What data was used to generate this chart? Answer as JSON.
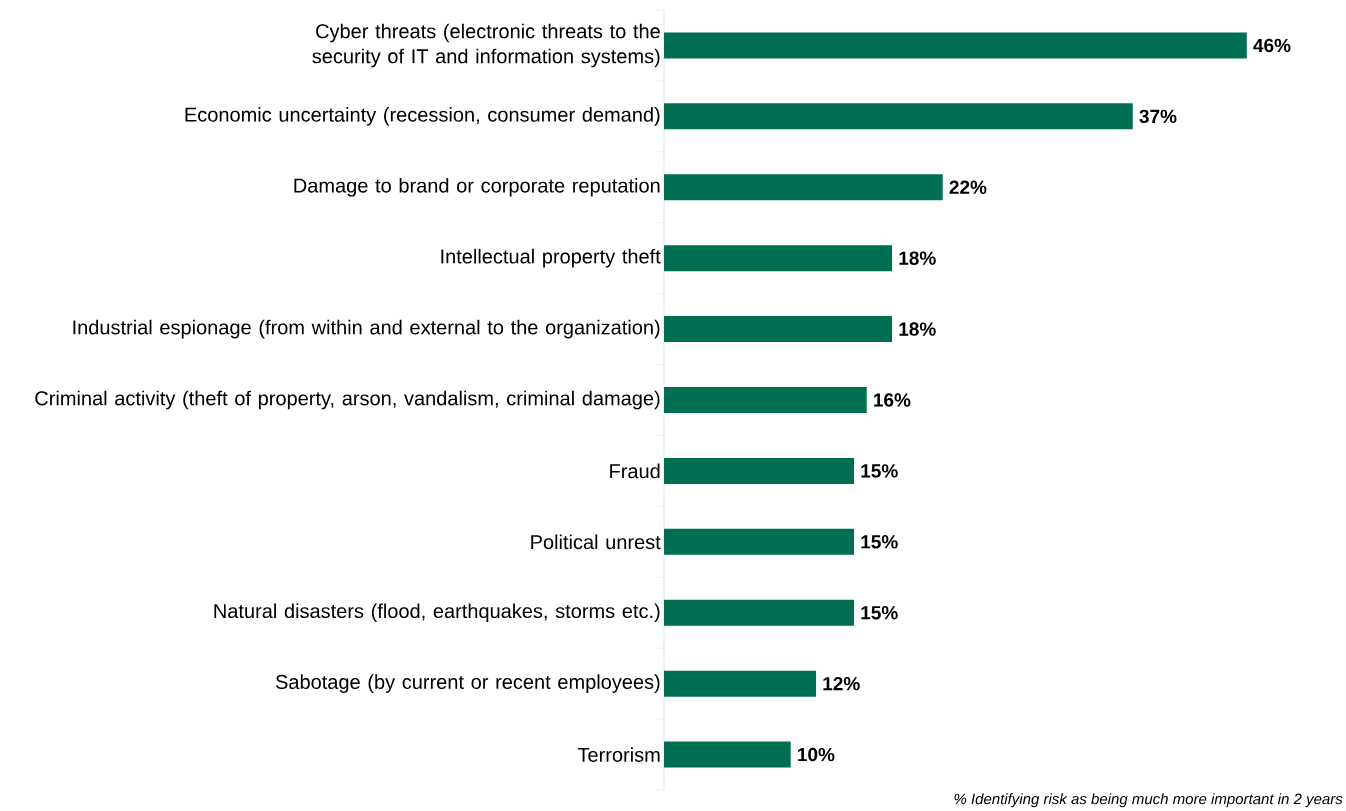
{
  "chart_data": {
    "type": "bar",
    "orientation": "horizontal",
    "categories": [
      "Cyber threats (electronic threats to the security of IT and information systems)",
      "Economic uncertainty (recession, consumer demand)",
      "Damage to brand or corporate reputation",
      "Intellectual property theft",
      "Industrial espionage (from within and external to the organization)",
      "Criminal activity (theft of property, arson, vandalism, criminal damage)",
      "Fraud",
      "Political unrest",
      "Natural disasters (flood, earthquakes, storms etc.)",
      "Sabotage (by current or recent employees)",
      "Terrorism"
    ],
    "values": [
      46,
      37,
      22,
      18,
      18,
      16,
      15,
      15,
      15,
      12,
      10
    ],
    "value_labels": [
      "46%",
      "37%",
      "22%",
      "18%",
      "18%",
      "16%",
      "15%",
      "15%",
      "15%",
      "12%",
      "10%"
    ],
    "color": "#006f51",
    "annotations": [
      "% Identifying risk as being much more important in 2 years"
    ]
  }
}
